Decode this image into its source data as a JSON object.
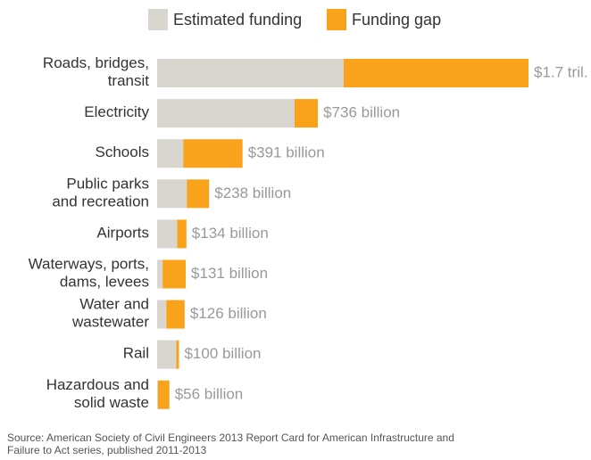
{
  "chart_data": {
    "type": "stacked_barh",
    "categories": [
      "Roads, bridges,\ntransit",
      "Electricity",
      "Schools",
      "Public parks\nand recreation",
      "Airports",
      "Waterways, ports,\ndams, levees",
      "Water and\nwastewater",
      "Rail",
      "Hazardous and\nsolid waste"
    ],
    "series": [
      {
        "name": "Estimated funding",
        "color": "#d9d5cf",
        "values": [
          854,
          629,
          120,
          136,
          92,
          25,
          42,
          88,
          4
        ]
      },
      {
        "name": "Funding gap",
        "color": "#f9a21b",
        "values": [
          846,
          107,
          271,
          102,
          42,
          106,
          84,
          12,
          52
        ]
      }
    ],
    "totals": {
      "values": [
        1700,
        736,
        391,
        238,
        134,
        131,
        126,
        100,
        56
      ],
      "value_labels": [
        "$1.7 tril.",
        "$736 billion",
        "$391 billion",
        "$238 billion",
        "$134 billion",
        "$131 billion",
        "$126 billion",
        "$100  billion",
        "$56 billion"
      ]
    },
    "source": [
      "Source: American Society of Civil Engineers 2013 Report Card for American Infrastructure and",
      "Failure to Act series, published 2011-2013"
    ]
  }
}
